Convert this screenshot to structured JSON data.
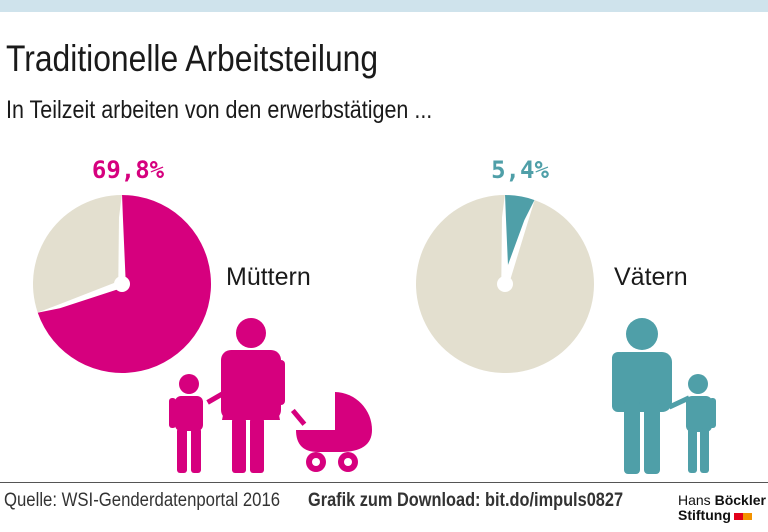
{
  "header": {
    "title": "Traditionelle Arbeitsteilung",
    "subtitle": "In Teilzeit arbeiten von den erwerbstätigen ..."
  },
  "chart_data": [
    {
      "type": "pie",
      "label": "Müttern",
      "value_label": "69,8%",
      "slices": [
        {
          "value": 69.8,
          "color": "#d6007e"
        },
        {
          "value": 30.2,
          "color": "#e3dfcf"
        }
      ]
    },
    {
      "type": "pie",
      "label": "Vätern",
      "value_label": "5,4%",
      "slices": [
        {
          "value": 5.4,
          "color": "#4f9fa8"
        },
        {
          "value": 94.6,
          "color": "#e3dfcf"
        }
      ]
    }
  ],
  "footer": {
    "source": "Quelle: WSI-Genderdatenportal 2016",
    "download": "Grafik zum Download: bit.do/impuls0827",
    "logo_line1_a": "Hans",
    "logo_line1_b": "Böckler",
    "logo_line2": "Stiftung"
  },
  "colors": {
    "mothers": "#d6007e",
    "fathers": "#4f9fa8",
    "rest": "#e3dfcf"
  },
  "icons": [
    "mother-child-stroller-icon",
    "father-child-icon"
  ]
}
